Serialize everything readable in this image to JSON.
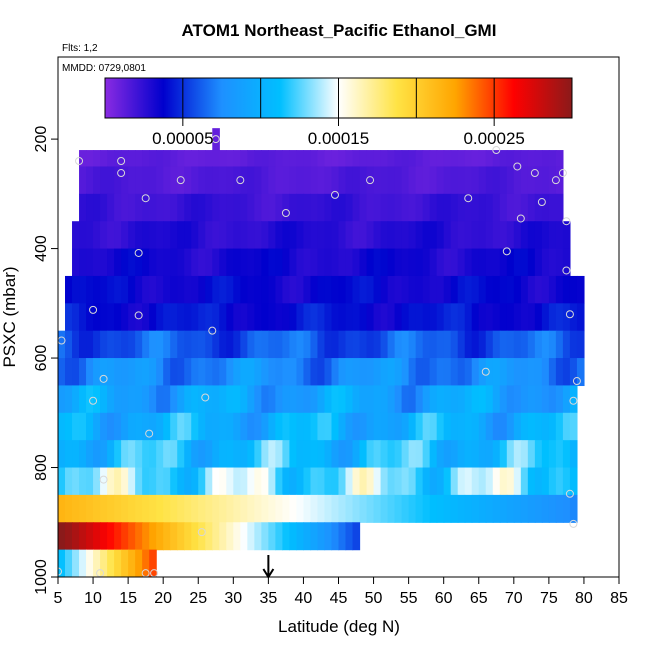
{
  "chart_data": {
    "type": "heatmap",
    "title": "ATOM1 Northeast_Pacific Ethanol_GMI",
    "annotations": [
      "Flts: 1,2",
      "MMDD: 0729,0801"
    ],
    "xlabel": "Latitude (deg N)",
    "ylabel": "PSXC (mbar)",
    "xlim": [
      5,
      85
    ],
    "ylim": [
      1000,
      50
    ],
    "x_ticks": [
      5,
      10,
      15,
      20,
      25,
      30,
      35,
      40,
      45,
      50,
      55,
      60,
      65,
      70,
      75,
      80,
      85
    ],
    "y_ticks": [
      200,
      400,
      600,
      800,
      1000
    ],
    "y_reversed": true,
    "colorbar": {
      "range": [
        0,
        0.0003
      ],
      "tick_values": [
        5e-05,
        0.00015,
        0.00025
      ],
      "tick_labels": [
        "0.00005",
        "0.00015",
        "0.00025"
      ],
      "placement": "top-inside"
    },
    "colormap": [
      "#8a2be2",
      "#0000cd",
      "#1e90ff",
      "#00bfff",
      "#ffffff",
      "#ffe345",
      "#ffa500",
      "#ff0000",
      "#8b1a1a"
    ],
    "marker": {
      "x": 35,
      "y": 1000,
      "symbol": "down-arrow"
    },
    "layers": [
      {
        "p0": 180,
        "p1": 220,
        "x0": 27,
        "x1": 28,
        "v": 1e-05
      },
      {
        "p0": 220,
        "p1": 250,
        "x0": 8,
        "x1": 77,
        "v": 1.2e-05
      },
      {
        "p0": 250,
        "p1": 300,
        "x0": 8,
        "x1": 77,
        "v": 1.6e-05
      },
      {
        "p0": 300,
        "p1": 350,
        "x0": 8,
        "x1": 77,
        "v": 2.2e-05
      },
      {
        "p0": 350,
        "p1": 400,
        "x0": 7,
        "x1": 78,
        "v": 2.7e-05
      },
      {
        "p0": 400,
        "p1": 450,
        "x0": 7,
        "x1": 78,
        "v": 3.2e-05
      },
      {
        "p0": 450,
        "p1": 500,
        "x0": 6,
        "x1": 80,
        "v": 3.6e-05
      },
      {
        "p0": 500,
        "p1": 550,
        "x0": 6,
        "x1": 80,
        "v": 4e-05
      },
      {
        "p0": 550,
        "p1": 600,
        "x0": 5,
        "x1": 80,
        "v": 6e-05
      },
      {
        "p0": 600,
        "p1": 650,
        "x0": 5,
        "x1": 80,
        "v": 7.5e-05
      },
      {
        "p0": 650,
        "p1": 700,
        "x0": 5,
        "x1": 79,
        "v": 9e-05
      },
      {
        "p0": 700,
        "p1": 750,
        "x0": 5,
        "x1": 79,
        "v": 0.0001
      },
      {
        "p0": 750,
        "p1": 800,
        "x0": 5,
        "x1": 79,
        "v": 0.00011
      },
      {
        "p0": 800,
        "p1": 850,
        "x0": 5,
        "x1": 79,
        "v": 0.00013
      },
      {
        "p0": 850,
        "p1": 900,
        "x0": 5,
        "x1": 79,
        "v": 0.00016
      },
      {
        "p0": 900,
        "p1": 950,
        "x0": 5,
        "x1": 48,
        "v": 0.00021
      },
      {
        "p0": 950,
        "p1": 1000,
        "x0": 5,
        "x1": 19,
        "v": 0.00018
      }
    ],
    "points": [
      {
        "x": 27.5,
        "y": 200
      },
      {
        "x": 8,
        "y": 240
      },
      {
        "x": 14,
        "y": 240
      },
      {
        "x": 14,
        "y": 262
      },
      {
        "x": 22.5,
        "y": 275
      },
      {
        "x": 31,
        "y": 275
      },
      {
        "x": 49.5,
        "y": 275
      },
      {
        "x": 67.5,
        "y": 220
      },
      {
        "x": 70.5,
        "y": 250
      },
      {
        "x": 73,
        "y": 262
      },
      {
        "x": 76,
        "y": 275
      },
      {
        "x": 77,
        "y": 262
      },
      {
        "x": 17.5,
        "y": 308
      },
      {
        "x": 44.5,
        "y": 302
      },
      {
        "x": 63.5,
        "y": 308
      },
      {
        "x": 74,
        "y": 315
      },
      {
        "x": 37.5,
        "y": 335
      },
      {
        "x": 71,
        "y": 345
      },
      {
        "x": 77.5,
        "y": 350
      },
      {
        "x": 16.5,
        "y": 408
      },
      {
        "x": 69,
        "y": 405
      },
      {
        "x": 77.5,
        "y": 440
      },
      {
        "x": 10,
        "y": 512
      },
      {
        "x": 16.5,
        "y": 522
      },
      {
        "x": 78,
        "y": 520
      },
      {
        "x": 5.5,
        "y": 568
      },
      {
        "x": 27,
        "y": 550
      },
      {
        "x": 66,
        "y": 625
      },
      {
        "x": 11.5,
        "y": 638
      },
      {
        "x": 79,
        "y": 642
      },
      {
        "x": 10,
        "y": 678
      },
      {
        "x": 26,
        "y": 672
      },
      {
        "x": 78.5,
        "y": 678
      },
      {
        "x": 18,
        "y": 738
      },
      {
        "x": 11.5,
        "y": 822
      },
      {
        "x": 78,
        "y": 848
      },
      {
        "x": 78.5,
        "y": 903
      },
      {
        "x": 25.5,
        "y": 918
      },
      {
        "x": 5,
        "y": 990
      },
      {
        "x": 11,
        "y": 993
      },
      {
        "x": 17.5,
        "y": 993
      },
      {
        "x": 18.7,
        "y": 993
      }
    ]
  }
}
